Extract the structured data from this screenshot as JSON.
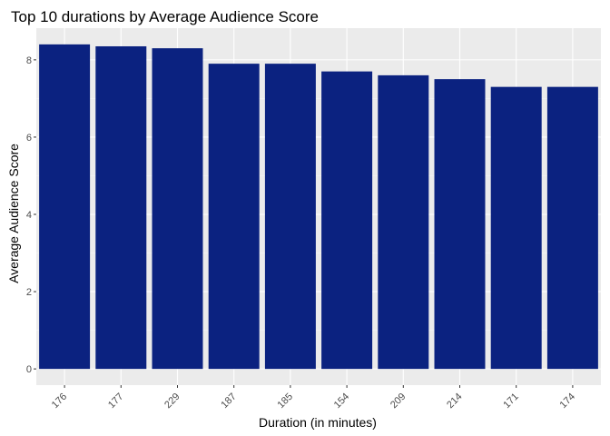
{
  "chart_data": {
    "type": "bar",
    "title": "Top 10 durations by Average Audience Score",
    "xlabel": "Duration (in minutes)",
    "ylabel": "Average Audience Score",
    "categories": [
      "176",
      "177",
      "229",
      "187",
      "185",
      "154",
      "209",
      "214",
      "171",
      "174"
    ],
    "values": [
      8.4,
      8.35,
      8.3,
      7.9,
      7.9,
      7.7,
      7.6,
      7.5,
      7.3,
      7.3
    ],
    "ylim": [
      -0.42,
      8.82
    ],
    "yticks": [
      0,
      2,
      4,
      6,
      8
    ],
    "grid": true,
    "legend": "none",
    "colors": {
      "bar": "#0b2280",
      "panel": "#ebebeb",
      "grid_major": "#ffffff",
      "grid_minor": "#f5f5f5",
      "tick_text": "#4d4d4d"
    }
  }
}
